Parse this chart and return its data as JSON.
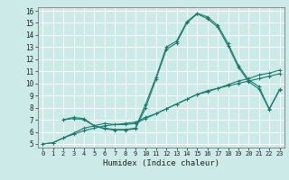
{
  "bg_color": "#cceae7",
  "grid_color": "#ffffff",
  "line_color": "#1a7a6e",
  "marker": "+",
  "marker_size": 3,
  "marker_lw": 0.8,
  "xlabel": "Humidex (Indice chaleur)",
  "xlim": [
    -0.5,
    23.5
  ],
  "ylim": [
    4.7,
    16.3
  ],
  "xticks": [
    0,
    1,
    2,
    3,
    4,
    5,
    6,
    7,
    8,
    9,
    10,
    11,
    12,
    13,
    14,
    15,
    16,
    17,
    18,
    19,
    20,
    21,
    22,
    23
  ],
  "yticks": [
    5,
    6,
    7,
    8,
    9,
    10,
    11,
    12,
    13,
    14,
    15,
    16
  ],
  "line1_x": [
    0,
    1,
    2,
    3,
    4,
    5,
    6,
    7,
    8,
    9,
    10,
    11,
    12,
    13,
    14,
    15,
    16,
    17,
    18,
    19,
    20,
    21,
    22,
    23
  ],
  "line1_y": [
    5.0,
    5.1,
    5.5,
    5.8,
    6.1,
    6.3,
    6.5,
    6.6,
    6.7,
    6.8,
    7.2,
    7.5,
    7.9,
    8.3,
    8.7,
    9.1,
    9.3,
    9.6,
    9.8,
    10.0,
    10.2,
    10.4,
    10.6,
    10.8
  ],
  "line2_x": [
    0,
    1,
    2,
    3,
    4,
    5,
    6,
    7,
    8,
    9,
    10,
    11,
    12,
    13,
    14,
    15,
    16,
    17,
    18,
    19,
    20,
    21,
    22,
    23
  ],
  "line2_y": [
    5.0,
    5.1,
    5.5,
    5.9,
    6.3,
    6.5,
    6.7,
    6.6,
    6.6,
    6.7,
    7.1,
    7.5,
    7.9,
    8.3,
    8.7,
    9.1,
    9.4,
    9.6,
    9.9,
    10.2,
    10.4,
    10.7,
    10.85,
    11.1
  ],
  "line3_x": [
    2,
    3,
    4,
    5,
    6,
    7,
    8,
    9,
    10,
    11,
    12,
    13,
    14,
    15,
    16,
    17,
    18,
    19,
    20,
    21,
    22,
    23
  ],
  "line3_y": [
    7.0,
    7.2,
    7.1,
    6.5,
    6.3,
    6.2,
    6.2,
    6.3,
    8.3,
    10.5,
    13.0,
    13.5,
    15.1,
    15.8,
    15.5,
    14.8,
    13.3,
    11.5,
    10.3,
    9.75,
    7.9,
    9.5
  ],
  "line4_x": [
    2,
    3,
    4,
    5,
    6,
    7,
    8,
    9,
    10,
    11,
    12,
    13,
    14,
    15,
    16,
    17,
    18,
    19,
    20,
    21,
    22,
    23
  ],
  "line4_y": [
    7.0,
    7.1,
    7.0,
    6.5,
    6.25,
    6.15,
    6.15,
    6.25,
    8.0,
    10.35,
    12.8,
    13.35,
    15.0,
    15.75,
    15.35,
    14.65,
    13.1,
    11.35,
    10.15,
    9.55,
    7.85,
    9.45
  ]
}
